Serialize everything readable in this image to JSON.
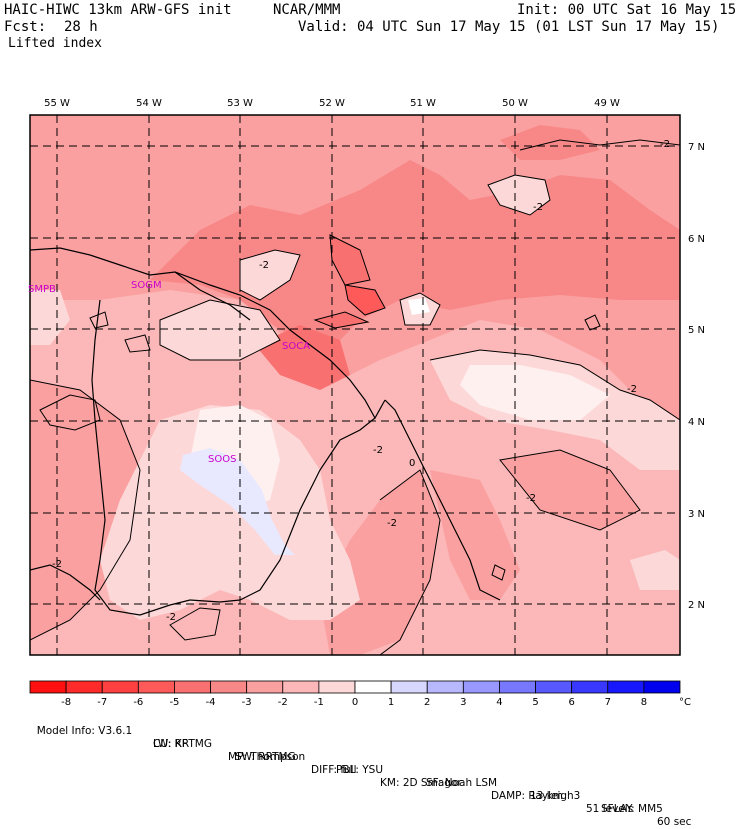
{
  "header": {
    "model_title": "HAIC-HIWC 13km ARW-GFS init",
    "agency": "NCAR/MMM",
    "init": "Init: 00 UTC Sat 16 May 15",
    "fcst_label": "Fcst:",
    "fcst_value": "28 h",
    "valid": "Valid: 04 UTC Sun 17 May 15 (01 LST Sun 17 May 15)",
    "field": "Lifted index"
  },
  "map": {
    "lon_labels": [
      "55 W",
      "54 W",
      "53 W",
      "52 W",
      "51 W",
      "50 W",
      "49 W"
    ],
    "lat_labels": [
      "7 N",
      "6 N",
      "5 N",
      "4 N",
      "3 N",
      "2 N"
    ],
    "stations": [
      "SMPB",
      "SOCA",
      "SOGM",
      "SOOS"
    ],
    "contour_labels": [
      "-2",
      "-2",
      "-2",
      "-2",
      "-2",
      "-2",
      "-2",
      "-2",
      "-2",
      "0"
    ]
  },
  "colorbar": {
    "ticks": [
      "-8",
      "-7",
      "-6",
      "-5",
      "-4",
      "-3",
      "-2",
      "-1",
      "0",
      "1",
      "2",
      "3",
      "4",
      "5",
      "6",
      "7",
      "8"
    ],
    "unit": "°C",
    "colors": [
      "#ff1010",
      "#ff2a2a",
      "#ff4040",
      "#ff5a5a",
      "#f87070",
      "#f88888",
      "#fba0a0",
      "#fcb8b8",
      "#fdd8d8",
      "#ffffff",
      "#d8d8ff",
      "#b8b8ff",
      "#9898ff",
      "#7878ff",
      "#5858ff",
      "#3838ff",
      "#1818ff",
      "#0000ee"
    ]
  },
  "footer": {
    "line1": [
      "Model Info: V3.6.1",
      "CU: KF",
      "MP: Thompson",
      "PBL: YSU",
      "SF: Noah LSM",
      "13 km",
      "51 levels",
      "60 sec"
    ],
    "line2": [
      "LW: RRTMG",
      "SW: RRTMG",
      "DIFF: full",
      "KM: 2D Smagor",
      "DAMP: Rayleigh3",
      "SFLAY: MM5"
    ]
  }
}
